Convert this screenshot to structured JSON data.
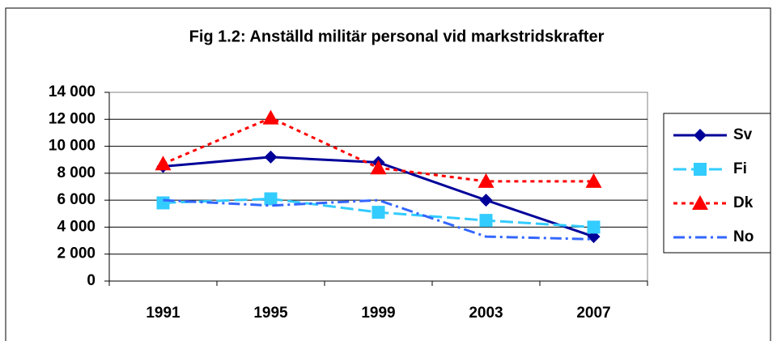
{
  "chart_data": {
    "type": "line",
    "title": "Fig 1.2: Anställd militär personal vid markstridskrafter",
    "categories": [
      "1991",
      "1995",
      "1999",
      "2003",
      "2007"
    ],
    "series": [
      {
        "name": "Sv",
        "color": "#000099",
        "marker": "diamond",
        "dash": "solid",
        "values": [
          8500,
          9200,
          8800,
          6000,
          3300
        ]
      },
      {
        "name": "Fi",
        "color": "#33ccff",
        "marker": "square",
        "dash": "long-dash",
        "values": [
          5800,
          6100,
          5100,
          4500,
          4000
        ]
      },
      {
        "name": "Dk",
        "color": "#ff0000",
        "marker": "triangle",
        "dash": "dot",
        "values": [
          8700,
          12100,
          8400,
          7400,
          7400
        ]
      },
      {
        "name": "No",
        "color": "#3366ff",
        "marker": "none",
        "dash": "dash-dot",
        "values": [
          6000,
          5600,
          6000,
          3300,
          3100
        ]
      }
    ],
    "ylim": [
      0,
      14000
    ],
    "yticks": [
      0,
      {
        "value": 2000,
        "label": "2 000"
      },
      {
        "value": 4000,
        "label": "4 000"
      },
      {
        "value": 6000,
        "label": "6 000"
      },
      {
        "value": 8000,
        "label": "8 000"
      },
      {
        "value": 10000,
        "label": "10 000"
      },
      {
        "value": 12000,
        "label": "12 000"
      },
      {
        "value": 14000,
        "label": "14 000"
      }
    ],
    "grid": true,
    "legend": "right"
  }
}
